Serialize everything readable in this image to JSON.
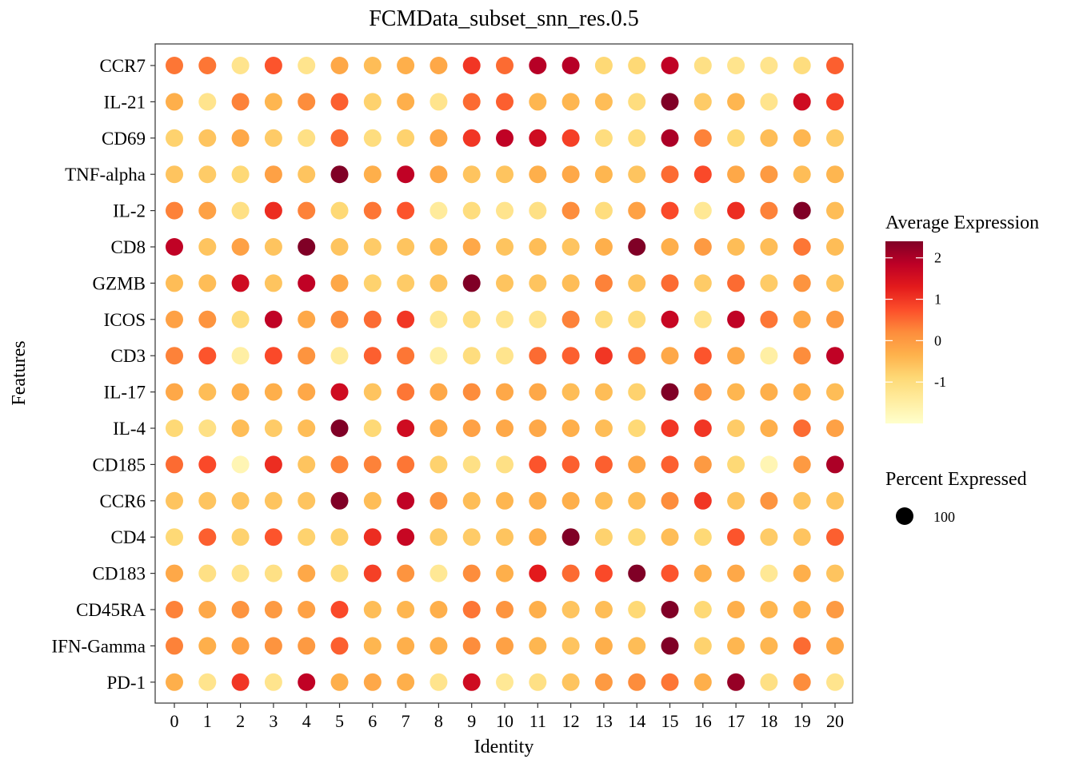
{
  "chart_data": {
    "type": "dotplot",
    "title": "FCMData_subset_snn_res.0.5",
    "xlabel": "Identity",
    "ylabel": "Features",
    "identities": [
      "0",
      "1",
      "2",
      "3",
      "4",
      "5",
      "6",
      "7",
      "8",
      "9",
      "10",
      "11",
      "12",
      "13",
      "14",
      "15",
      "16",
      "17",
      "18",
      "19",
      "20"
    ],
    "features": [
      "CCR7",
      "IL-21",
      "CD69",
      "TNF-alpha",
      "IL-2",
      "CD8",
      "GZMB",
      "ICOS",
      "CD3",
      "IL-17",
      "IL-4",
      "CD185",
      "CCR6",
      "CD4",
      "CD183",
      "CD45RA",
      "IFN-Gamma",
      "PD-1"
    ],
    "grid": false,
    "color_legend": {
      "title": "Average Expression",
      "range": [
        -2,
        2.4
      ],
      "ticks": [
        2,
        1,
        0,
        -1
      ],
      "tick_labels": [
        "2",
        "1",
        "0",
        "-1"
      ],
      "colors": [
        "#ffffcc",
        "#ffeda0",
        "#fed976",
        "#feb24c",
        "#fd8d3c",
        "#fc4e2a",
        "#e31a1c",
        "#bd0026",
        "#800026"
      ]
    },
    "size_legend": {
      "title": "Percent Expressed",
      "entries": [
        {
          "label": "100",
          "value": 100
        }
      ]
    },
    "percent_expressed": 100,
    "avg_expression": [
      [
        0.4,
        0.4,
        -1.2,
        0.7,
        -1.2,
        -0.2,
        -0.5,
        -0.3,
        -0.2,
        1.0,
        0.5,
        1.9,
        1.9,
        -0.9,
        -0.9,
        1.8,
        -1.1,
        -1.2,
        -1.2,
        -1.0,
        0.6
      ],
      [
        -0.3,
        -1.2,
        0.3,
        -0.4,
        0.2,
        0.6,
        -0.8,
        -0.3,
        -1.2,
        0.5,
        0.6,
        -0.4,
        -0.4,
        -0.5,
        -1.0,
        2.4,
        -0.7,
        -0.4,
        -1.2,
        1.6,
        0.9
      ],
      [
        -0.8,
        -0.6,
        -0.2,
        -0.7,
        -1.1,
        0.5,
        -1.0,
        -0.8,
        -0.2,
        1.0,
        1.8,
        1.6,
        0.9,
        -1.0,
        -1.0,
        2.0,
        0.3,
        -0.9,
        -0.5,
        -0.4,
        -0.7
      ],
      [
        -0.6,
        -0.7,
        -0.9,
        -0.1,
        -0.6,
        2.4,
        -0.3,
        1.8,
        -0.2,
        -0.6,
        -0.6,
        -0.3,
        -0.2,
        -0.4,
        -0.6,
        0.5,
        0.8,
        -0.2,
        0.0,
        -0.5,
        -0.4
      ],
      [
        0.3,
        -0.1,
        -1.1,
        1.1,
        0.3,
        -0.9,
        0.4,
        0.7,
        -1.4,
        -1.0,
        -1.2,
        -1.1,
        0.2,
        -1.0,
        -0.1,
        0.8,
        -1.3,
        1.1,
        0.3,
        2.4,
        -0.5
      ],
      [
        1.8,
        -0.6,
        -0.1,
        -0.6,
        2.4,
        -0.6,
        -0.7,
        -0.6,
        -0.5,
        -0.2,
        -0.6,
        -0.5,
        -0.6,
        -0.3,
        2.4,
        -0.3,
        0.0,
        -0.5,
        -0.5,
        0.4,
        -0.5
      ],
      [
        -0.5,
        -0.5,
        1.6,
        -0.6,
        1.8,
        -0.2,
        -0.8,
        -0.7,
        -0.6,
        2.4,
        -0.6,
        -0.6,
        -0.5,
        0.3,
        -0.6,
        0.5,
        -0.7,
        0.5,
        -0.7,
        0.1,
        -0.6
      ],
      [
        -0.1,
        0.1,
        -1.0,
        1.8,
        -0.2,
        0.2,
        0.5,
        1.0,
        -1.3,
        -1.0,
        -1.2,
        -1.2,
        0.3,
        -1.0,
        -1.0,
        1.7,
        -1.2,
        1.8,
        0.4,
        -0.2,
        0.0
      ],
      [
        0.3,
        0.7,
        -1.5,
        0.8,
        0.1,
        -1.4,
        0.6,
        0.4,
        -1.5,
        -1.0,
        -1.2,
        0.5,
        0.6,
        1.0,
        0.5,
        -0.2,
        0.7,
        -0.2,
        -1.5,
        0.2,
        1.8
      ],
      [
        -0.2,
        -0.5,
        -0.3,
        -0.3,
        -0.2,
        1.6,
        -0.6,
        0.4,
        -0.2,
        0.2,
        -0.2,
        -0.2,
        -0.5,
        -0.5,
        -0.8,
        2.4,
        0.0,
        -0.4,
        -0.3,
        -0.3,
        -0.5
      ],
      [
        -0.9,
        -1.1,
        -0.5,
        -0.7,
        -0.5,
        2.4,
        -0.9,
        1.6,
        -0.2,
        -0.1,
        -0.2,
        -0.2,
        -0.3,
        -0.5,
        -0.9,
        1.0,
        1.0,
        -0.7,
        -0.3,
        0.5,
        -0.1
      ],
      [
        0.5,
        0.8,
        -1.7,
        1.1,
        -0.6,
        0.3,
        0.3,
        0.4,
        -0.8,
        -1.1,
        -1.1,
        0.7,
        0.6,
        0.6,
        -0.2,
        0.6,
        0.0,
        -0.9,
        -1.7,
        0.0,
        2.0
      ],
      [
        -0.6,
        -0.6,
        -0.6,
        -0.6,
        -0.6,
        2.4,
        -0.5,
        1.8,
        0.1,
        -0.5,
        -0.4,
        -0.3,
        -0.3,
        -0.5,
        -0.5,
        0.2,
        1.0,
        -0.6,
        0.1,
        -0.6,
        -0.6
      ],
      [
        -0.9,
        0.6,
        -0.8,
        0.7,
        -0.8,
        -0.8,
        1.1,
        1.7,
        -0.7,
        -0.7,
        -0.6,
        -0.3,
        2.4,
        -0.8,
        -0.9,
        -0.5,
        -0.9,
        0.7,
        -0.7,
        -0.6,
        0.6
      ],
      [
        -0.2,
        -1.1,
        -1.2,
        -1.1,
        -0.2,
        -1.0,
        0.9,
        0.1,
        -1.3,
        0.2,
        -0.3,
        1.3,
        0.5,
        0.8,
        2.4,
        0.7,
        -0.3,
        -0.2,
        -1.3,
        -0.3,
        -0.6
      ],
      [
        0.3,
        -0.2,
        0.1,
        0.0,
        -0.1,
        0.8,
        -0.5,
        -0.4,
        -0.3,
        0.4,
        0.1,
        -0.3,
        -0.6,
        -0.5,
        -0.9,
        2.4,
        -0.9,
        -0.3,
        -0.4,
        -0.3,
        0.0
      ],
      [
        0.3,
        -0.3,
        -0.1,
        0.1,
        0.0,
        0.6,
        -0.4,
        -0.3,
        -0.3,
        0.2,
        -0.1,
        -0.4,
        -0.6,
        -0.3,
        -0.5,
        2.4,
        -0.8,
        -0.4,
        -0.4,
        0.5,
        -0.2
      ],
      [
        -0.3,
        -1.2,
        1.0,
        -1.2,
        1.8,
        -0.3,
        -0.2,
        -0.3,
        -1.2,
        1.6,
        -1.3,
        -1.1,
        -0.6,
        0.0,
        0.2,
        0.4,
        -0.3,
        2.2,
        -1.1,
        0.2,
        -1.2
      ]
    ]
  }
}
